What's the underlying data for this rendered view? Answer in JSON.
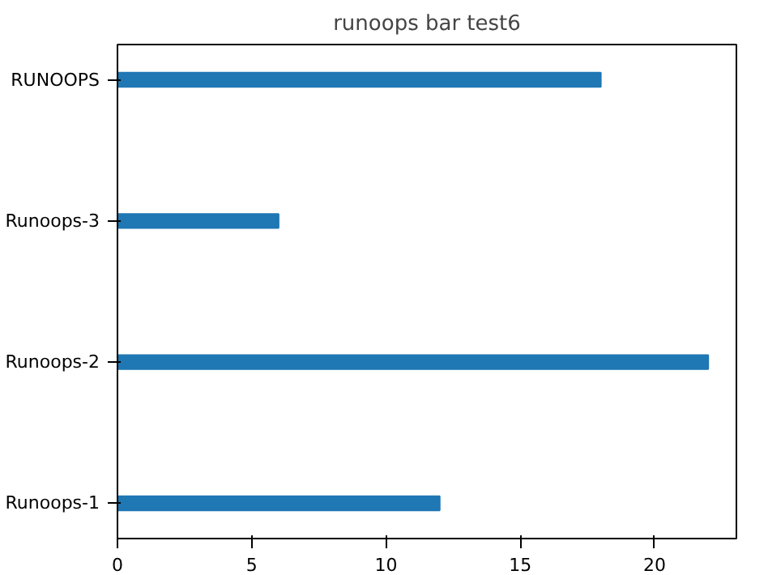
{
  "chart_data": {
    "type": "bar",
    "title": "runoops bar test6",
    "orientation": "horizontal",
    "categories": [
      "RUNOOPS",
      "Runoops-3",
      "Runoops-2",
      "Runoops-1"
    ],
    "values": [
      18,
      6,
      22,
      12
    ],
    "color": "#1f77b4",
    "xlim": [
      0,
      23.05
    ],
    "xticks": [
      0,
      5,
      10,
      15,
      20
    ],
    "grid": false
  }
}
